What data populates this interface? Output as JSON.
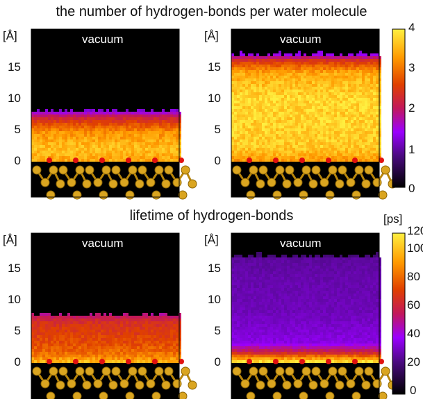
{
  "chart_data": [
    {
      "type": "heatmap",
      "title": "the number of hydrogen-bonds per water molecule",
      "colorbar": {
        "ticks": [
          "0",
          "1",
          "2",
          "3",
          "4"
        ],
        "range": [
          0,
          4
        ]
      },
      "panels": [
        {
          "name": "left",
          "annotation": "vacuum",
          "y_unit": "[Å]",
          "y_ticks": [
            "0",
            "5",
            "10",
            "15"
          ],
          "water_range": [
            0,
            8
          ],
          "profile": [
            {
              "z": 0,
              "v": 3.4
            },
            {
              "z": 2,
              "v": 3.6
            },
            {
              "z": 4.5,
              "v": 3.2
            },
            {
              "z": 6,
              "v": 2.6
            },
            {
              "z": 7,
              "v": 2.1
            },
            {
              "z": 8,
              "v": 1.2
            }
          ]
        },
        {
          "name": "right",
          "annotation": "vacuum",
          "y_unit": "[Å]",
          "y_ticks": [
            "0",
            "5",
            "10",
            "15"
          ],
          "water_range": [
            0,
            17
          ],
          "profile": [
            {
              "z": 0,
              "v": 3.3
            },
            {
              "z": 2,
              "v": 3.7
            },
            {
              "z": 10,
              "v": 3.8
            },
            {
              "z": 14,
              "v": 3.4
            },
            {
              "z": 16,
              "v": 2.4
            },
            {
              "z": 17,
              "v": 1.3
            }
          ]
        }
      ]
    },
    {
      "type": "heatmap",
      "title": "lifetime of hydrogen-bonds",
      "colorbar": {
        "unit": "[ps]",
        "ticks": [
          "0",
          "20",
          "40",
          "60",
          "80",
          "100",
          "120"
        ],
        "range": [
          0,
          120
        ]
      },
      "panels": [
        {
          "name": "left",
          "annotation": "vacuum",
          "y_unit": "[Å]",
          "y_ticks": [
            "0",
            "5",
            "10",
            "15"
          ],
          "water_range": [
            0,
            7.5
          ],
          "profile": [
            {
              "z": 0,
              "v": 105
            },
            {
              "z": 1,
              "v": 90
            },
            {
              "z": 3,
              "v": 80
            },
            {
              "z": 5,
              "v": 75
            },
            {
              "z": 6.5,
              "v": 70
            },
            {
              "z": 7.5,
              "v": 55
            }
          ]
        },
        {
          "name": "right",
          "annotation": "vacuum",
          "y_unit": "[Å]",
          "y_ticks": [
            "0",
            "5",
            "10",
            "15"
          ],
          "water_range": [
            0,
            17
          ],
          "profile": [
            {
              "z": 0,
              "v": 115
            },
            {
              "z": 1.5,
              "v": 65
            },
            {
              "z": 3,
              "v": 38
            },
            {
              "z": 8,
              "v": 32
            },
            {
              "z": 14,
              "v": 30
            },
            {
              "z": 16.5,
              "v": 28
            },
            {
              "z": 17,
              "v": 20
            }
          ]
        }
      ]
    }
  ]
}
